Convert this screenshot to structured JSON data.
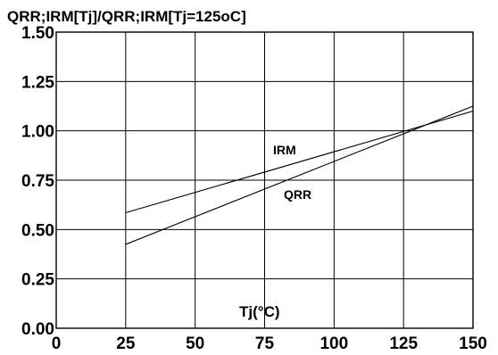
{
  "chart_data": {
    "type": "line",
    "title": "QRR;IRM[Tj]/QRR;IRM[Tj=125oC]",
    "xlabel": "Tj(°C)",
    "ylabel": "",
    "xlim": [
      0,
      150
    ],
    "ylim": [
      0,
      1.5
    ],
    "xticks": [
      0,
      25,
      50,
      75,
      100,
      125,
      150
    ],
    "xtick_labels": [
      "0",
      "25",
      "50",
      "75",
      "100",
      "125",
      "150"
    ],
    "yticks": [
      0,
      0.25,
      0.5,
      0.75,
      1.0,
      1.25,
      1.5
    ],
    "ytick_labels": [
      "0.00",
      "0.25",
      "0.50",
      "0.75",
      "1.00",
      "1.25",
      "1.50"
    ],
    "grid": true,
    "line_color": "#000000",
    "series": [
      {
        "name": "IRM",
        "x": [
          25,
          150
        ],
        "y": [
          0.585,
          1.1
        ]
      },
      {
        "name": "QRR",
        "x": [
          25,
          150
        ],
        "y": [
          0.425,
          1.125
        ]
      }
    ]
  }
}
